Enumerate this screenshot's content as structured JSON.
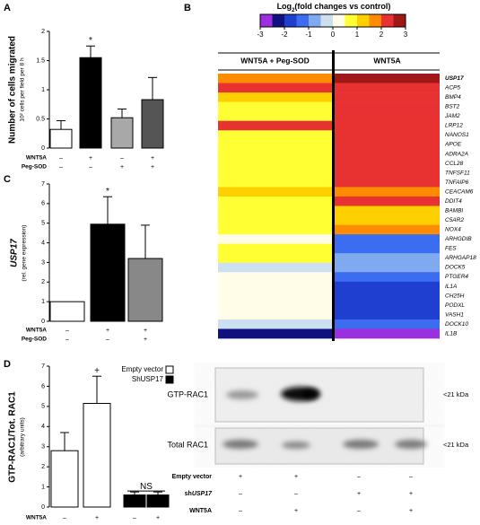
{
  "panels": [
    "A",
    "B",
    "C",
    "D"
  ],
  "chart_data": [
    {
      "type": "bar",
      "ylabel": "Number of cells migrated",
      "ylabel_sub": "10² cells per field per 8 h",
      "values": [
        0.32,
        1.55,
        0.52,
        0.83
      ],
      "errors": [
        0.15,
        0.2,
        0.15,
        0.38
      ],
      "colors": [
        "#ffffff",
        "#000000",
        "#a8a8a8",
        "#555555"
      ],
      "ylim": [
        0,
        2
      ],
      "yticks": [
        0,
        0.5,
        1,
        1.5,
        2
      ],
      "conditions": [
        {
          "name": "WNT5A",
          "values": [
            "–",
            "+",
            "–",
            "+"
          ]
        },
        {
          "name": "Peg-SOD",
          "values": [
            "–",
            "–",
            "+",
            "+"
          ]
        }
      ],
      "annotations": [
        "*"
      ]
    },
    {
      "type": "heatmap",
      "colorbar_title": {
        "text": "Log",
        "sub": "2",
        "rest": "(fold changes vs control)"
      },
      "clim": [
        -3,
        3
      ],
      "cticks": [
        -3,
        -2,
        -1,
        0,
        1,
        2,
        3
      ],
      "colorscale": [
        "#9b30e0",
        "#101080",
        "#1f3fd0",
        "#3c6cf0",
        "#80aaf0",
        "#cde0f2",
        "#fffde8",
        "#ffff33",
        "#ffd000",
        "#ff8c00",
        "#e83232",
        "#a01818"
      ],
      "categories": [
        "USP17",
        "ACP5",
        "BMP4",
        "BST2",
        "JAM2",
        "LRP12",
        "NANOS1",
        "APOE",
        "ADRA2A",
        "CCL28",
        "TNFSF11",
        "TNFAIP6",
        "CEACAM6",
        "DDIT4",
        "BAMBI",
        "C5AR2",
        "NOX4",
        "ARHGDIB",
        "FES",
        "ARHGAP18",
        "DOCK5",
        "PTGER4",
        "IL1A",
        "CH25H",
        "PODXL",
        "VASH1",
        "DOCK10",
        "IL1B"
      ],
      "series": [
        {
          "name": "WNT5A + Peg-SOD",
          "values": [
            1.8,
            2.2,
            1.2,
            0.8,
            0.8,
            2.2,
            0.8,
            0.8,
            0.8,
            0.8,
            0.8,
            0.8,
            1.2,
            0.8,
            0.8,
            0.8,
            0.8,
            0.2,
            0.8,
            0.8,
            -0.4,
            0.2,
            0.1,
            0.1,
            0.1,
            0.1,
            -0.4,
            -2.2
          ]
        },
        {
          "name": "WNT5A",
          "values": [
            2.8,
            2.2,
            2.2,
            2.2,
            2.2,
            2.2,
            2.2,
            2.2,
            2.2,
            2.2,
            2.2,
            2.2,
            1.8,
            2.2,
            1.2,
            1.2,
            1.8,
            -1.5,
            -1.5,
            -1.0,
            -0.8,
            -1.5,
            -1.8,
            -1.8,
            -2.0,
            -2.0,
            -1.5,
            -3
          ]
        }
      ]
    },
    {
      "type": "bar",
      "ylabel": "USP17",
      "ylabel_sub": "(rel. gene expression)",
      "values": [
        1,
        4.95,
        3.2
      ],
      "errors": [
        null,
        1.4,
        1.7
      ],
      "colors": [
        "#ffffff",
        "#000000",
        "#888888"
      ],
      "ylim": [
        0,
        7
      ],
      "yticks": [
        0,
        1,
        2,
        3,
        4,
        5,
        6,
        7
      ],
      "conditions": [
        {
          "name": "WNT5A",
          "values": [
            "–",
            "+",
            "+"
          ]
        },
        {
          "name": "Peg-SOD",
          "values": [
            "–",
            "–",
            "+"
          ]
        }
      ],
      "annotations": [
        "*"
      ]
    },
    {
      "type": "bar",
      "ylabel": "GTP-RAC1/Tot. RAC1",
      "ylabel_sub": "(arbitrary units)",
      "values": [
        2.8,
        5.15,
        0.6,
        0.6
      ],
      "errors": [
        0.9,
        1.35,
        0.15,
        0.15
      ],
      "colors": [
        "#ffffff",
        "#ffffff",
        "#000000",
        "#000000"
      ],
      "ylim": [
        0,
        7
      ],
      "yticks": [
        0,
        1,
        2,
        3,
        4,
        5,
        6,
        7
      ],
      "legend": [
        {
          "name": "Empty vector",
          "color": "#ffffff"
        },
        {
          "name": "ShUSP17",
          "color": "#000000"
        }
      ],
      "conditions": [
        {
          "name": "WNT5A",
          "values": [
            "–",
            "+",
            "–",
            "+"
          ]
        }
      ],
      "annotations": [
        "+",
        "NS"
      ]
    }
  ],
  "blot": {
    "rows": [
      {
        "name": "GTP-RAC1",
        "size": "<21 kDa"
      },
      {
        "name": "Total RAC1",
        "size": "<21 kDa"
      }
    ],
    "conditions": [
      {
        "name": "Empty vector",
        "values": [
          "+",
          "+",
          "–",
          "–"
        ]
      },
      {
        "name": {
          "prefix": "sh",
          "gene": "USP17"
        },
        "values": [
          "–",
          "–",
          "+",
          "+"
        ]
      },
      {
        "name": "WNT5A",
        "values": [
          "–",
          "+",
          "–",
          "+"
        ]
      }
    ]
  }
}
